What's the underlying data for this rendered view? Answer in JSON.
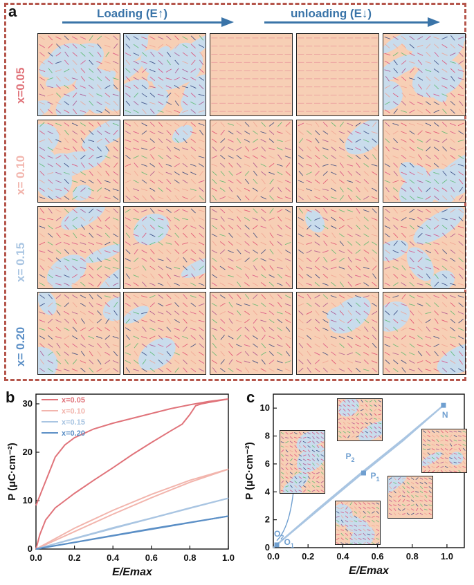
{
  "panel_a": {
    "letter": "a",
    "loading_label": "Loading (E↑)",
    "unloading_label": "unloading (E↓)",
    "row_labels": [
      "x=0.05",
      "x= 0.10",
      "x= 0.15",
      "x= 0.20"
    ],
    "row_colors": [
      "#e0737a",
      "#f2b5ad",
      "#a9c5e2",
      "#5b8fc6"
    ],
    "domain_colors": {
      "orange": "#f7cfb5",
      "blue": "#c9dcec",
      "border": "#222222"
    },
    "blue_fraction": [
      [
        0.75,
        0.95,
        0.0,
        0.0,
        0.55
      ],
      [
        0.45,
        0.08,
        0.0,
        0.05,
        0.35
      ],
      [
        0.25,
        0.1,
        0.0,
        0.05,
        0.22
      ],
      [
        0.18,
        0.12,
        0.0,
        0.1,
        0.12
      ]
    ]
  },
  "panel_b": {
    "letter": "b",
    "chart_data": {
      "type": "line",
      "title": "",
      "xlabel": "E/Emax",
      "ylabel": "P (μC·cm⁻²)",
      "xlim": [
        0,
        1.0
      ],
      "ylim": [
        0,
        32
      ],
      "xticks": [
        "0.0",
        "0.2",
        "0.4",
        "0.6",
        "0.8",
        "1.0"
      ],
      "yticks": [
        "0",
        "10",
        "20",
        "30"
      ],
      "legend_position": "top-left",
      "series": [
        {
          "name": "x=0.05",
          "color": "#e0737a",
          "loading": {
            "x": [
              0.0,
              0.02,
              0.05,
              0.1,
              0.15,
              0.2,
              0.3,
              0.4,
              0.5,
              0.6,
              0.7,
              0.76,
              0.8,
              0.83,
              0.86,
              0.9,
              1.0
            ],
            "y": [
              0.0,
              3.0,
              6.0,
              8.5,
              10.0,
              11.5,
              14.2,
              16.8,
              19.5,
              22.0,
              24.4,
              25.8,
              27.8,
              29.6,
              30.0,
              30.3,
              31.0
            ]
          },
          "unloading": {
            "x": [
              1.0,
              0.9,
              0.8,
              0.7,
              0.6,
              0.5,
              0.4,
              0.3,
              0.2,
              0.15,
              0.1,
              0.06,
              0.03,
              0.01,
              0.0
            ],
            "y": [
              31.0,
              30.5,
              29.8,
              29.0,
              28.0,
              27.0,
              26.0,
              24.8,
              23.0,
              21.5,
              19.0,
              15.0,
              12.0,
              10.0,
              9.0
            ]
          }
        },
        {
          "name": "x=0.10",
          "color": "#f2b5ad",
          "loading": {
            "x": [
              0.0,
              0.2,
              0.4,
              0.6,
              0.8,
              1.0
            ],
            "y": [
              0.0,
              3.6,
              7.2,
              10.6,
              13.8,
              16.5
            ]
          },
          "unloading": {
            "x": [
              1.0,
              0.8,
              0.6,
              0.4,
              0.2,
              0.0
            ],
            "y": [
              16.5,
              14.2,
              11.3,
              8.0,
              4.3,
              0.0
            ]
          }
        },
        {
          "name": "x=0.15",
          "color": "#a9c5e2",
          "loading": {
            "x": [
              0.0,
              0.2,
              0.4,
              0.6,
              0.8,
              1.0
            ],
            "y": [
              0.0,
              2.2,
              4.4,
              6.4,
              8.5,
              10.5
            ]
          },
          "unloading": {
            "x": [
              1.0,
              0.5,
              0.0
            ],
            "y": [
              10.5,
              5.3,
              0.0
            ]
          }
        },
        {
          "name": "x=0.20",
          "color": "#5b8fc6",
          "loading": {
            "x": [
              0.0,
              0.2,
              0.4,
              0.6,
              0.8,
              1.0
            ],
            "y": [
              0.0,
              1.4,
              2.8,
              4.2,
              5.5,
              6.8
            ]
          },
          "unloading": {
            "x": [
              1.0,
              0.5,
              0.0
            ],
            "y": [
              6.8,
              3.4,
              0.0
            ]
          }
        }
      ]
    }
  },
  "panel_c": {
    "letter": "c",
    "chart_data": {
      "type": "line",
      "title": "",
      "xlabel": "E/Emax",
      "ylabel": "P (μC·cm⁻²)",
      "xlim": [
        0,
        1.1
      ],
      "ylim": [
        0,
        11
      ],
      "xticks": [
        "0.0",
        "0.2",
        "0.4",
        "0.6",
        "0.8",
        "1.0"
      ],
      "yticks": [
        "0",
        "2",
        "4",
        "6",
        "8",
        "10"
      ],
      "color": "#a9c5e2",
      "series": [
        {
          "name": "",
          "x": [
            0.0,
            0.25,
            0.5,
            0.75,
            0.98
          ],
          "y": [
            0.0,
            2.6,
            5.2,
            7.7,
            10.2
          ]
        },
        {
          "name": "",
          "x": [
            0.98,
            0.75,
            0.5,
            0.25,
            0.0
          ],
          "y": [
            10.2,
            7.8,
            5.3,
            2.7,
            0.0
          ]
        }
      ],
      "points": [
        {
          "label": "O",
          "sub": "2",
          "x": 0.02,
          "y": 0.2
        },
        {
          "label": "O",
          "sub": "1",
          "x": 0.03,
          "y": 0.1
        },
        {
          "label": "P",
          "sub": "2",
          "x": 0.52,
          "y": 5.35
        },
        {
          "label": "P",
          "sub": "1",
          "x": 0.52,
          "y": 5.35
        },
        {
          "label": "N",
          "sub": "",
          "x": 0.98,
          "y": 10.2
        }
      ]
    }
  }
}
